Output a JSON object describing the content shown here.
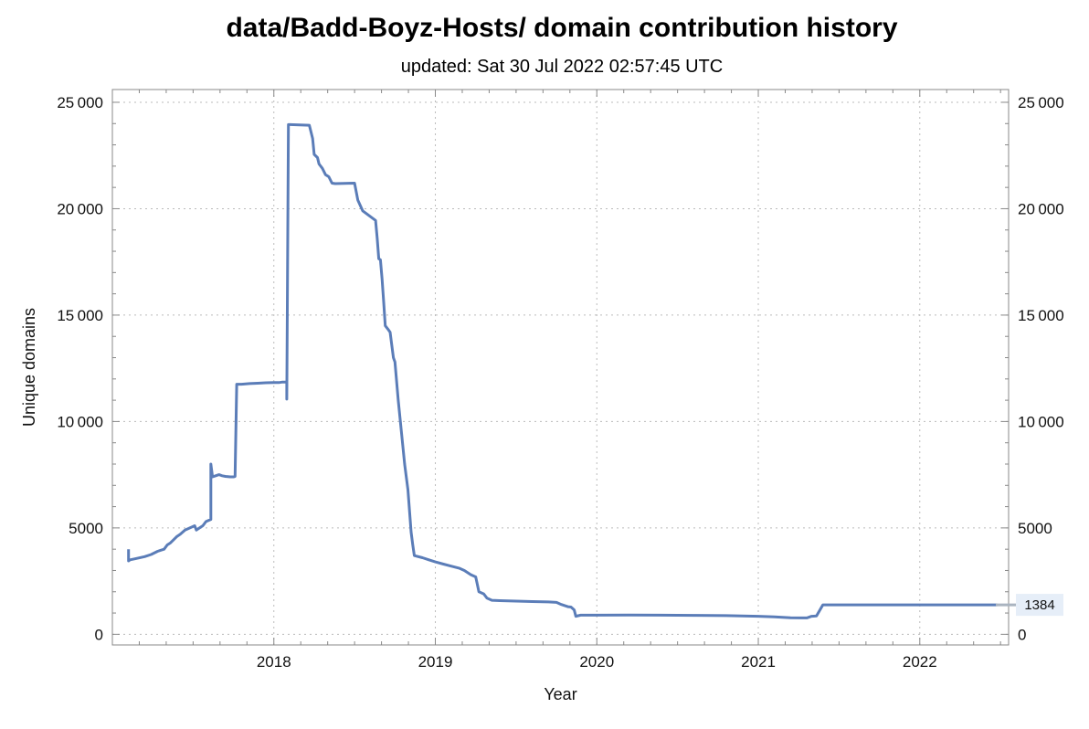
{
  "chart_data": {
    "type": "line",
    "title": "data/Badd-Boyz-Hosts/ domain contribution history",
    "subtitle": "updated: Sat 30 Jul 2022 02:57:45 UTC",
    "xlabel": "Year",
    "ylabel": "Unique domains",
    "xlim": [
      2017.0,
      2022.55
    ],
    "ylim": [
      -500,
      25600
    ],
    "x_ticks": [
      2018,
      2019,
      2020,
      2021,
      2022
    ],
    "x_tick_labels": [
      "2018",
      "2019",
      "2020",
      "2021",
      "2022"
    ],
    "y_ticks": [
      0,
      5000,
      10000,
      15000,
      20000,
      25000
    ],
    "y_tick_labels": [
      "0",
      "5000",
      "10 000",
      "15 000",
      "20 000",
      "25 000"
    ],
    "grid": true,
    "end_value_label": "1384",
    "color": "#5b7db8",
    "series": [
      {
        "x": [
          2017.1,
          2017.1,
          2017.11,
          2017.14,
          2017.2,
          2017.24,
          2017.28,
          2017.3,
          2017.32,
          2017.34,
          2017.36,
          2017.38,
          2017.4,
          2017.42,
          2017.45,
          2017.48,
          2017.51,
          2017.52,
          2017.53,
          2017.56,
          2017.58,
          2017.61,
          2017.61,
          2017.62,
          2017.64,
          2017.66,
          2017.68,
          2017.7,
          2017.73,
          2017.75,
          2017.76,
          2017.77,
          2017.8,
          2017.85,
          2017.9,
          2017.95,
          2018.0,
          2018.03,
          2018.05,
          2018.08,
          2018.08,
          2018.09,
          2018.1,
          2018.22,
          2018.24,
          2018.25,
          2018.27,
          2018.28,
          2018.3,
          2018.32,
          2018.34,
          2018.36,
          2018.38,
          2018.5,
          2018.52,
          2018.55,
          2018.63,
          2018.64,
          2018.65,
          2018.66,
          2018.67,
          2018.68,
          2018.69,
          2018.71,
          2018.72,
          2018.74,
          2018.75,
          2018.77,
          2018.79,
          2018.81,
          2018.83,
          2018.85,
          2018.86,
          2018.87,
          2018.92,
          2018.96,
          2019.0,
          2019.05,
          2019.1,
          2019.15,
          2019.18,
          2019.22,
          2019.25,
          2019.27,
          2019.3,
          2019.32,
          2019.35,
          2019.4,
          2019.5,
          2019.6,
          2019.7,
          2019.75,
          2019.78,
          2019.82,
          2019.84,
          2019.86,
          2019.87,
          2019.9,
          2020.0,
          2020.2,
          2020.4,
          2020.6,
          2020.8,
          2021.0,
          2021.1,
          2021.2,
          2021.27,
          2021.3,
          2021.33,
          2021.36,
          2021.4,
          2021.6,
          2021.8,
          2022.0,
          2022.2,
          2022.4,
          2022.48
        ],
        "y": [
          4000,
          3450,
          3500,
          3550,
          3650,
          3750,
          3900,
          3950,
          4000,
          4200,
          4300,
          4450,
          4600,
          4700,
          4900,
          5000,
          5100,
          4900,
          4950,
          5100,
          5300,
          5400,
          8000,
          7400,
          7450,
          7500,
          7450,
          7420,
          7400,
          7400,
          7420,
          11750,
          11750,
          11780,
          11800,
          11820,
          11830,
          11830,
          11850,
          11850,
          11050,
          23950,
          23950,
          23920,
          23300,
          22550,
          22400,
          22100,
          21900,
          21600,
          21500,
          21200,
          21180,
          21200,
          20400,
          19900,
          19450,
          18600,
          17650,
          17600,
          16700,
          15600,
          14500,
          14300,
          14200,
          13000,
          12800,
          11000,
          9500,
          8000,
          6800,
          4800,
          4200,
          3700,
          3600,
          3500,
          3400,
          3300,
          3200,
          3100,
          3000,
          2800,
          2700,
          2000,
          1900,
          1700,
          1600,
          1580,
          1560,
          1540,
          1520,
          1500,
          1400,
          1300,
          1280,
          1150,
          850,
          900,
          900,
          910,
          900,
          890,
          880,
          850,
          820,
          780,
          770,
          770,
          850,
          860,
          1384,
          1384,
          1384,
          1384,
          1384,
          1384,
          1384
        ]
      }
    ]
  }
}
